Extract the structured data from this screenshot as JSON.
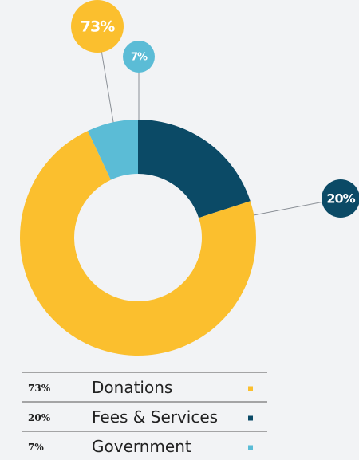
{
  "chart_data": {
    "type": "donut",
    "categories": [
      "Donations",
      "Fees & Services",
      "Government"
    ],
    "values": [
      73,
      20,
      7
    ],
    "value_labels": [
      "73%",
      "20%",
      "7%"
    ],
    "colors": [
      "#fbbf2e",
      "#0b4a66",
      "#5bbcd6"
    ]
  }
}
